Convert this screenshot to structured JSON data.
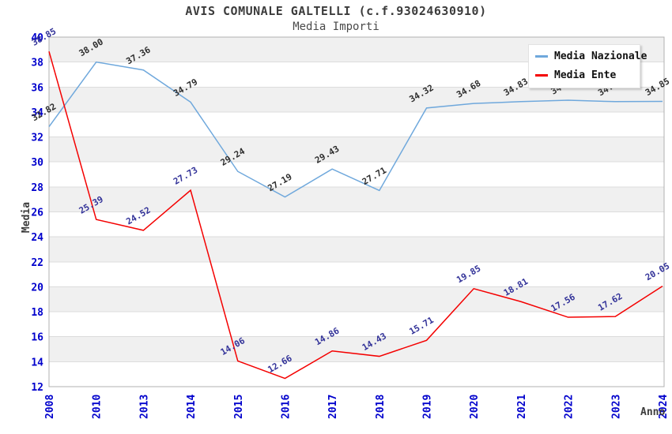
{
  "header": {
    "title": "AVIS COMUNALE GALTELLI (c.f.93024630910)",
    "subtitle": "Media Importi"
  },
  "legend": {
    "items": [
      {
        "label": "Media Nazionale",
        "color": "#6FA8DC"
      },
      {
        "label": "Media Ente",
        "color": "#F40000"
      }
    ]
  },
  "chart_data": {
    "type": "line",
    "title": "AVIS COMUNALE GALTELLI (c.f.93024630910)",
    "subtitle": "Media Importi",
    "xlabel": "Anno",
    "ylabel": "Media",
    "categories": [
      "2008",
      "2010",
      "2013",
      "2014",
      "2015",
      "2016",
      "2017",
      "2018",
      "2019",
      "2020",
      "2021",
      "2022",
      "2023",
      "2024"
    ],
    "series": [
      {
        "name": "Media Nazionale",
        "color": "#6FA8DC",
        "label_color": "#2e2e2e",
        "values": [
          32.82,
          38.0,
          37.36,
          34.79,
          29.24,
          27.19,
          29.43,
          27.71,
          34.32,
          34.68,
          34.83,
          34.94,
          34.83,
          34.85
        ]
      },
      {
        "name": "Media Ente",
        "color": "#F40000",
        "label_color": "#333399",
        "values": [
          38.85,
          25.39,
          24.52,
          27.73,
          14.06,
          12.66,
          14.86,
          14.43,
          15.71,
          19.85,
          18.81,
          17.56,
          17.62,
          20.05
        ]
      }
    ],
    "ylim": [
      12,
      40
    ],
    "yticks": [
      12,
      14,
      16,
      18,
      20,
      22,
      24,
      26,
      28,
      30,
      32,
      34,
      36,
      38,
      40
    ],
    "grid": true,
    "legend_position": "top-right",
    "styles": {
      "tick_label_color": "#0000CC",
      "band_color": "#f0f0f0",
      "gridline_color": "#dcdcdc",
      "frame_color": "#b0b0b0"
    }
  }
}
